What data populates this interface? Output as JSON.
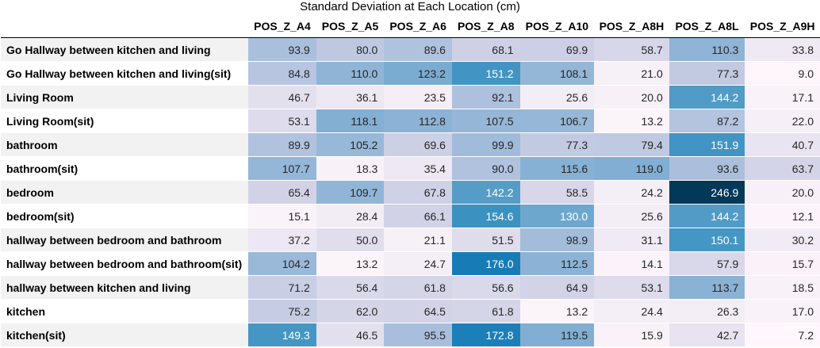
{
  "chart_data": {
    "type": "heatmap",
    "title": "Standard Deviation at Each Location (cm)",
    "columns": [
      "POS_Z_A4",
      "POS_Z_A5",
      "POS_Z_A6",
      "POS_Z_A8",
      "POS_Z_A10",
      "POS_Z_A8H",
      "POS_Z_A8L",
      "POS_Z_A9H"
    ],
    "rows": [
      {
        "label": "Go Hallway between kitchen and living",
        "values": [
          "93.9",
          "80.0",
          "89.6",
          "68.1",
          "69.9",
          "58.7",
          "110.3",
          "33.8"
        ]
      },
      {
        "label": "Go Hallway between kitchen and living(sit)",
        "values": [
          "84.8",
          "110.0",
          "123.2",
          "151.2",
          "108.1",
          "21.0",
          "77.3",
          "9.0"
        ]
      },
      {
        "label": "Living Room",
        "values": [
          "46.7",
          "36.1",
          "23.5",
          "92.1",
          "25.6",
          "20.0",
          "144.2",
          "17.1"
        ]
      },
      {
        "label": "Living Room(sit)",
        "values": [
          "53.1",
          "118.1",
          "112.8",
          "107.5",
          "106.7",
          "13.2",
          "87.2",
          "22.0"
        ]
      },
      {
        "label": "bathroom",
        "values": [
          "89.9",
          "105.2",
          "69.6",
          "99.9",
          "77.3",
          "79.4",
          "151.9",
          "40.7"
        ]
      },
      {
        "label": "bathroom(sit)",
        "values": [
          "107.7",
          "18.3",
          "35.4",
          "90.0",
          "115.6",
          "119.0",
          "93.6",
          "63.7"
        ]
      },
      {
        "label": "bedroom",
        "values": [
          "65.4",
          "109.7",
          "67.8",
          "142.2",
          "58.5",
          "24.2",
          "246.9",
          "20.0"
        ]
      },
      {
        "label": "bedroom(sit)",
        "values": [
          "15.1",
          "28.4",
          "66.1",
          "154.6",
          "130.0",
          "25.6",
          "144.2",
          "12.1"
        ]
      },
      {
        "label": "hallway between bedroom and bathroom",
        "values": [
          "37.2",
          "50.0",
          "21.1",
          "51.5",
          "98.9",
          "31.1",
          "150.1",
          "30.2"
        ]
      },
      {
        "label": "hallway between bedroom and bathroom(sit)",
        "values": [
          "104.2",
          "13.2",
          "24.7",
          "176.0",
          "112.5",
          "14.1",
          "57.9",
          "15.7"
        ]
      },
      {
        "label": "hallway between kitchen and living",
        "values": [
          "71.2",
          "56.4",
          "61.8",
          "56.6",
          "64.9",
          "53.1",
          "113.7",
          "18.5"
        ]
      },
      {
        "label": "kitchen",
        "values": [
          "75.2",
          "62.0",
          "64.5",
          "61.8",
          "13.2",
          "24.4",
          "26.3",
          "17.0"
        ]
      },
      {
        "label": "kitchen(sit)",
        "values": [
          "149.3",
          "46.5",
          "95.5",
          "172.8",
          "119.5",
          "15.9",
          "42.7",
          "7.2"
        ]
      }
    ],
    "colormap": "PuBu",
    "color_range": [
      7.2,
      246.9
    ]
  }
}
